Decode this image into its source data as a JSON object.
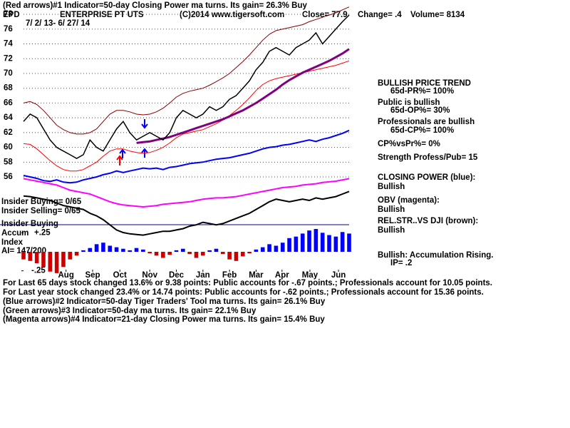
{
  "header": {
    "indicator1": "(Red arrows)#1 Indicator=50-day Closing Power ma turns. Its gain= 26.3% Buy",
    "ticker": "EPD",
    "name": "ENTERPRISE PT UTS",
    "copyright": "(C)2014 www.tigersoft.com",
    "close": "Close=  77.9",
    "change": "Change= .4",
    "volume": "Volume= 8134",
    "dates": "7/ 2/ 13- 6/ 27/ 14"
  },
  "left_notes": {
    "insider_buying": "Insider Buying= 0/65",
    "insider_selling": "Insider Selling= 0/65",
    "insider_buying2": "Insider Buying",
    "accum": "Accum",
    "index": "Index",
    "ai": "AI= 147/200"
  },
  "side_notes": [
    "BULLISH PRICE TREND",
    "65d-PR%= 100%",
    "Public is bullish",
    "65d-OP%= 30%",
    "Professionals are bullish",
    "65d-CP%= 100%",
    "CP%vsPr%=  0%",
    "Strength Profess/Pub= 15",
    "CLOSING POWER (blue):",
    "Bullish",
    "OBV (magenta):",
    "Bullish",
    "REL.STR..VS DJI (brown):",
    "Bullish",
    "Bullish: Accumulation Rising.",
    "IP=  .2"
  ],
  "footer": [
    "For Last 65 days stock changed  13.6% or  9.38 points:  Public accounts for -.67 points.;  Professionals account for  10.05 points.",
    "For Last year stock changed  23.4% or  14.74 points:  Public accounts for -.62 points.;  Professionals account for  15.36 points.",
    "(Blue arrows)#2 Indicator=50-day Tiger Traders' Tool ma turns. Its gain= 26.1% Buy",
    "(Green arrows)#3 Indicator=50-day ma turns. Its gain= 22.1% Buy",
    "(Magenta arrows)#4 Indicator=21-day Closing Power ma turns. Its gain= 15.4% Buy"
  ],
  "chart_data": [
    {
      "type": "line",
      "xlim": [
        0,
        49
      ],
      "xticks": [
        {
          "value": 6.4,
          "label": "Aug"
        },
        {
          "value": 10.4,
          "label": "Sep"
        },
        {
          "value": 14.5,
          "label": "Oct"
        },
        {
          "value": 19,
          "label": "Nov"
        },
        {
          "value": 23,
          "label": "Dec"
        },
        {
          "value": 27,
          "label": "Jan"
        },
        {
          "value": 31,
          "label": "Feb"
        },
        {
          "value": 35,
          "label": "Mar"
        },
        {
          "value": 38.9,
          "label": "Apr"
        },
        {
          "value": 43.1,
          "label": "May"
        },
        {
          "value": 47.4,
          "label": "Jun"
        }
      ],
      "ylim": [
        55,
        79
      ],
      "yticks": [
        56,
        58,
        60,
        62,
        64,
        66,
        68,
        70,
        72,
        74,
        76,
        78
      ],
      "grid": true,
      "grid_color": "#008000",
      "series": [
        {
          "color": "#8b0000",
          "width": 1,
          "values": [
            66,
            66.2,
            65.8,
            65,
            64,
            63,
            62.4,
            62,
            61.8,
            61.8,
            62,
            62.5,
            63.5,
            64.5,
            65,
            65,
            64.8,
            64.5,
            64.4,
            64.5,
            64.8,
            65.3,
            66,
            66.8,
            67.3,
            67.6,
            67.8,
            68,
            68.4,
            68.9,
            69.4,
            70,
            70.8,
            71.6,
            72.5,
            73.5,
            74.5,
            75.3,
            75.8,
            76,
            76.2,
            76.4,
            76.6,
            77,
            77.3,
            77.6,
            77.9,
            78.2,
            78.6,
            79
          ]
        },
        {
          "color": "#ff0000",
          "width": 1,
          "values": [
            60.5,
            60.4,
            59.8,
            59,
            58.2,
            57.5,
            57,
            56.8,
            56.8,
            57,
            57.5,
            58,
            58.8,
            59.5,
            59.8,
            59.8,
            59.5,
            59.3,
            59.2,
            59.3,
            59.6,
            60,
            60.6,
            61.3,
            61.8,
            62,
            62.2,
            62.4,
            62.8,
            63.2,
            63.7,
            64.3,
            65,
            65.8,
            66.7,
            67.7,
            68.5,
            69,
            69.3,
            69.5,
            69.7,
            69.9,
            70.1,
            70.3,
            70.5,
            70.7,
            70.9,
            71.1,
            71.4,
            71.7
          ]
        },
        {
          "color": "#800080",
          "width": 3,
          "values": [
            null,
            null,
            null,
            null,
            null,
            null,
            null,
            null,
            null,
            null,
            null,
            null,
            null,
            null,
            null,
            null,
            null,
            60.6,
            60.7,
            60.8,
            61,
            61.2,
            61.4,
            61.7,
            62,
            62.3,
            62.6,
            62.9,
            63.2,
            63.5,
            63.8,
            64.2,
            64.6,
            65,
            65.5,
            66,
            66.6,
            67.2,
            67.8,
            68.5,
            69.1,
            69.6,
            70.1,
            70.5,
            70.9,
            71.3,
            71.7,
            72.2,
            72.7,
            73.3
          ]
        },
        {
          "color": "#0000ff",
          "width": 2,
          "values": [
            56.2,
            56,
            55.8,
            55.5,
            55.4,
            55.6,
            55.3,
            55.2,
            55.3,
            55.6,
            55.8,
            56,
            56.3,
            56.5,
            56.8,
            56.6,
            56.8,
            57,
            57.2,
            57.1,
            57.2,
            57,
            57.3,
            57.4,
            57.6,
            57.8,
            57.9,
            58,
            58.2,
            58.4,
            58.5,
            58.6,
            58.8,
            59,
            59.2,
            59.5,
            59.8,
            60,
            60.1,
            60.3,
            60.4,
            60.6,
            60.8,
            61,
            60.8,
            61.1,
            61.3,
            61.6,
            61.9,
            62.3
          ]
        },
        {
          "color": "#000000",
          "width": 1.5,
          "values": [
            63.5,
            64.5,
            64,
            62.5,
            61,
            60,
            59.5,
            59,
            58.5,
            59,
            61,
            60,
            59.5,
            61,
            62.5,
            63.5,
            62,
            61,
            61.5,
            62,
            61.5,
            61,
            62,
            64,
            65,
            64.5,
            64,
            64.5,
            65.5,
            65,
            65.5,
            66.5,
            67,
            68,
            69,
            70.5,
            71.5,
            73,
            73.5,
            73,
            72.5,
            73.5,
            74,
            74.5,
            75.5,
            74,
            75,
            76,
            77,
            77.9
          ]
        }
      ]
    },
    {
      "type": "line",
      "xlim": [
        0,
        49
      ],
      "ylim": [
        0,
        100
      ],
      "series": [
        {
          "color": "#ff00ff",
          "width": 2,
          "values": [
            94,
            92,
            90,
            88,
            86,
            84,
            80,
            76,
            74,
            72,
            70,
            66,
            62,
            58,
            55,
            53,
            52,
            51,
            50,
            51,
            52,
            54,
            55,
            56,
            57,
            58,
            60,
            62,
            63,
            64,
            64,
            65,
            66,
            68,
            70,
            72,
            74,
            76,
            78,
            80,
            81,
            82,
            84,
            85,
            86,
            88,
            89,
            90,
            92,
            94
          ]
        },
        {
          "color": "#000000",
          "width": 2,
          "values": [
            67,
            66,
            64,
            62,
            60,
            56,
            52,
            50,
            48,
            46,
            40,
            36,
            30,
            22,
            14,
            10,
            8,
            7,
            6,
            8,
            10,
            12,
            12,
            14,
            16,
            20,
            22,
            26,
            24,
            22,
            24,
            28,
            32,
            36,
            40,
            46,
            52,
            58,
            62,
            60,
            58,
            60,
            62,
            60,
            64,
            62,
            64,
            66,
            70,
            74
          ]
        }
      ]
    },
    {
      "type": "bar",
      "xlim": [
        0,
        49
      ],
      "ylim": [
        -0.3,
        0.3
      ],
      "yticks": [
        {
          "value": 0.25,
          "label": "+.25"
        },
        {
          "value": -0.25,
          "label": "-.25"
        }
      ],
      "positive_color": "#0000ff",
      "negative_color": "#cc0000",
      "values": [
        -0.1,
        -0.12,
        -0.15,
        -0.2,
        -0.26,
        -0.28,
        -0.2,
        -0.1,
        -0.05,
        0.02,
        0.05,
        0.1,
        0.12,
        0.08,
        0.06,
        0.04,
        0.02,
        0.05,
        0.03,
        -0.02,
        -0.05,
        -0.08,
        -0.04,
        0.02,
        0.04,
        -0.03,
        -0.08,
        -0.05,
        0.02,
        0.04,
        -0.03,
        -0.1,
        -0.12,
        -0.06,
        -0.02,
        0.03,
        0.06,
        0.1,
        0.08,
        0.12,
        0.18,
        0.2,
        0.24,
        0.28,
        0.3,
        0.25,
        0.22,
        0.2,
        0.26,
        0.24
      ]
    }
  ]
}
